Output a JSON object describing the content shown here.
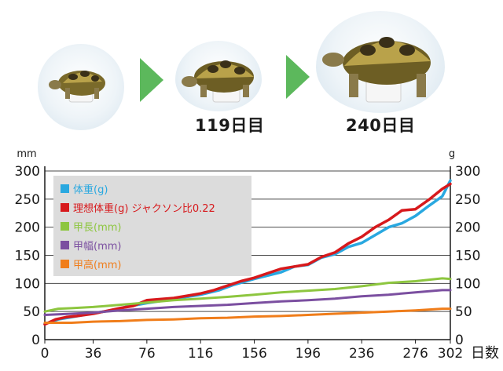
{
  "photos": {
    "items": [
      {
        "caption": ""
      },
      {
        "caption": "119日目"
      },
      {
        "caption": "240日目"
      }
    ],
    "arrow_color": "#5cb85c"
  },
  "chart_data": {
    "type": "line",
    "xlabel": "日数",
    "y_left_unit": "mm",
    "y_right_unit": "g",
    "xlim": [
      0,
      302
    ],
    "ylim": [
      0,
      300
    ],
    "x_ticks": [
      0,
      36,
      76,
      116,
      156,
      196,
      236,
      276,
      302
    ],
    "y_ticks": [
      0,
      50,
      100,
      150,
      200,
      250,
      300
    ],
    "grid": "horizontal",
    "legend": {
      "position": "top-left",
      "background": "#dcdcdc"
    },
    "series": [
      {
        "name": "体重(g)",
        "color": "#29a8e0",
        "axis": "right",
        "points": [
          [
            0,
            28
          ],
          [
            10,
            36
          ],
          [
            20,
            40
          ],
          [
            36,
            47
          ],
          [
            50,
            52
          ],
          [
            60,
            58
          ],
          [
            76,
            65
          ],
          [
            90,
            70
          ],
          [
            100,
            74
          ],
          [
            116,
            80
          ],
          [
            130,
            88
          ],
          [
            140,
            97
          ],
          [
            156,
            108
          ],
          [
            166,
            114
          ],
          [
            176,
            120
          ],
          [
            186,
            130
          ],
          [
            196,
            133
          ],
          [
            206,
            146
          ],
          [
            216,
            152
          ],
          [
            226,
            165
          ],
          [
            236,
            172
          ],
          [
            246,
            186
          ],
          [
            256,
            200
          ],
          [
            266,
            207
          ],
          [
            276,
            220
          ],
          [
            286,
            238
          ],
          [
            296,
            255
          ],
          [
            302,
            283
          ]
        ]
      },
      {
        "name": "理想体重(g) ジャクソン比0.22",
        "color": "#d7191c",
        "axis": "right",
        "points": [
          [
            0,
            27
          ],
          [
            8,
            36
          ],
          [
            16,
            40
          ],
          [
            24,
            42
          ],
          [
            36,
            46
          ],
          [
            44,
            50
          ],
          [
            56,
            56
          ],
          [
            66,
            60
          ],
          [
            76,
            70
          ],
          [
            86,
            72
          ],
          [
            96,
            74
          ],
          [
            106,
            78
          ],
          [
            116,
            82
          ],
          [
            126,
            88
          ],
          [
            136,
            96
          ],
          [
            146,
            104
          ],
          [
            156,
            110
          ],
          [
            166,
            118
          ],
          [
            176,
            126
          ],
          [
            186,
            130
          ],
          [
            196,
            134
          ],
          [
            206,
            147
          ],
          [
            216,
            155
          ],
          [
            226,
            171
          ],
          [
            236,
            183
          ],
          [
            246,
            200
          ],
          [
            256,
            213
          ],
          [
            266,
            230
          ],
          [
            276,
            232
          ],
          [
            286,
            249
          ],
          [
            296,
            268
          ],
          [
            302,
            277
          ]
        ]
      },
      {
        "name": "甲長(mm)",
        "color": "#8dc63f",
        "axis": "left",
        "points": [
          [
            0,
            50
          ],
          [
            10,
            55
          ],
          [
            20,
            56
          ],
          [
            36,
            58
          ],
          [
            56,
            62
          ],
          [
            76,
            66
          ],
          [
            96,
            70
          ],
          [
            116,
            73
          ],
          [
            136,
            76
          ],
          [
            156,
            80
          ],
          [
            176,
            84
          ],
          [
            196,
            87
          ],
          [
            216,
            90
          ],
          [
            236,
            95
          ],
          [
            256,
            101
          ],
          [
            276,
            104
          ],
          [
            296,
            109
          ],
          [
            302,
            108
          ]
        ]
      },
      {
        "name": "甲幅(mm)",
        "color": "#7b4fa0",
        "axis": "left",
        "points": [
          [
            0,
            44
          ],
          [
            20,
            46
          ],
          [
            36,
            48
          ],
          [
            56,
            52
          ],
          [
            76,
            55
          ],
          [
            96,
            58
          ],
          [
            116,
            60
          ],
          [
            136,
            62
          ],
          [
            156,
            65
          ],
          [
            176,
            68
          ],
          [
            196,
            70
          ],
          [
            216,
            73
          ],
          [
            236,
            77
          ],
          [
            256,
            80
          ],
          [
            276,
            84
          ],
          [
            296,
            88
          ],
          [
            302,
            88
          ]
        ]
      },
      {
        "name": "甲高(mm)",
        "color": "#f07d1a",
        "axis": "left",
        "points": [
          [
            0,
            30
          ],
          [
            20,
            30
          ],
          [
            36,
            32
          ],
          [
            56,
            33
          ],
          [
            76,
            35
          ],
          [
            96,
            36
          ],
          [
            116,
            38
          ],
          [
            136,
            39
          ],
          [
            156,
            41
          ],
          [
            176,
            42
          ],
          [
            196,
            44
          ],
          [
            216,
            46
          ],
          [
            236,
            48
          ],
          [
            256,
            50
          ],
          [
            276,
            52
          ],
          [
            296,
            55
          ],
          [
            302,
            55
          ]
        ]
      }
    ]
  }
}
